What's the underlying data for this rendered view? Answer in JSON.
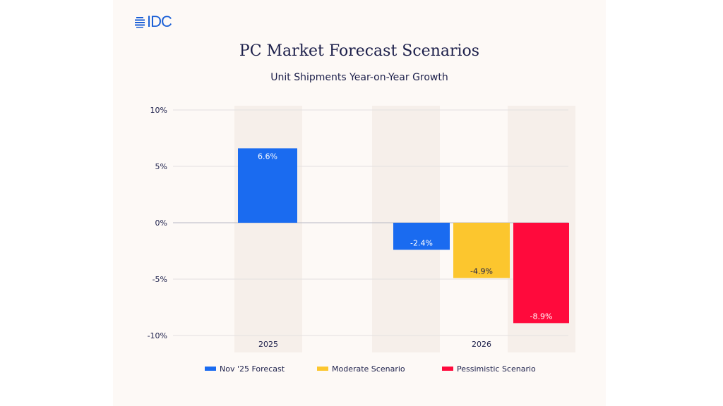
{
  "logo": {
    "text": "IDC"
  },
  "chart_data": {
    "type": "bar",
    "title": "PC Market Forecast Scenarios",
    "subtitle": "Unit Shipments Year-on-Year Growth",
    "xlabel": "",
    "ylabel": "",
    "ylim": [
      -10,
      10
    ],
    "yticks": [
      10,
      5,
      0,
      -5,
      -10
    ],
    "ytick_labels": [
      "10%",
      "5%",
      "0%",
      "-5%",
      "-10%"
    ],
    "grid": true,
    "legend_position": "bottom",
    "categories": [
      "2025",
      "2026"
    ],
    "series": [
      {
        "name": "Nov '25 Forecast",
        "color": "#1a6bf0",
        "values": [
          6.6,
          -2.4
        ],
        "labels": [
          "6.6%",
          "-2.4%"
        ],
        "label_color": "#ffffff"
      },
      {
        "name": "Moderate Scenario",
        "color": "#fcc62e",
        "values": [
          null,
          -4.9
        ],
        "labels": [
          null,
          "-4.9%"
        ],
        "label_color": "#1c1f4a"
      },
      {
        "name": "Pessimistic Scenario",
        "color": "#ff0a3c",
        "values": [
          null,
          -8.9
        ],
        "labels": [
          null,
          "-8.9%"
        ],
        "label_color": "#ffffff"
      }
    ]
  }
}
